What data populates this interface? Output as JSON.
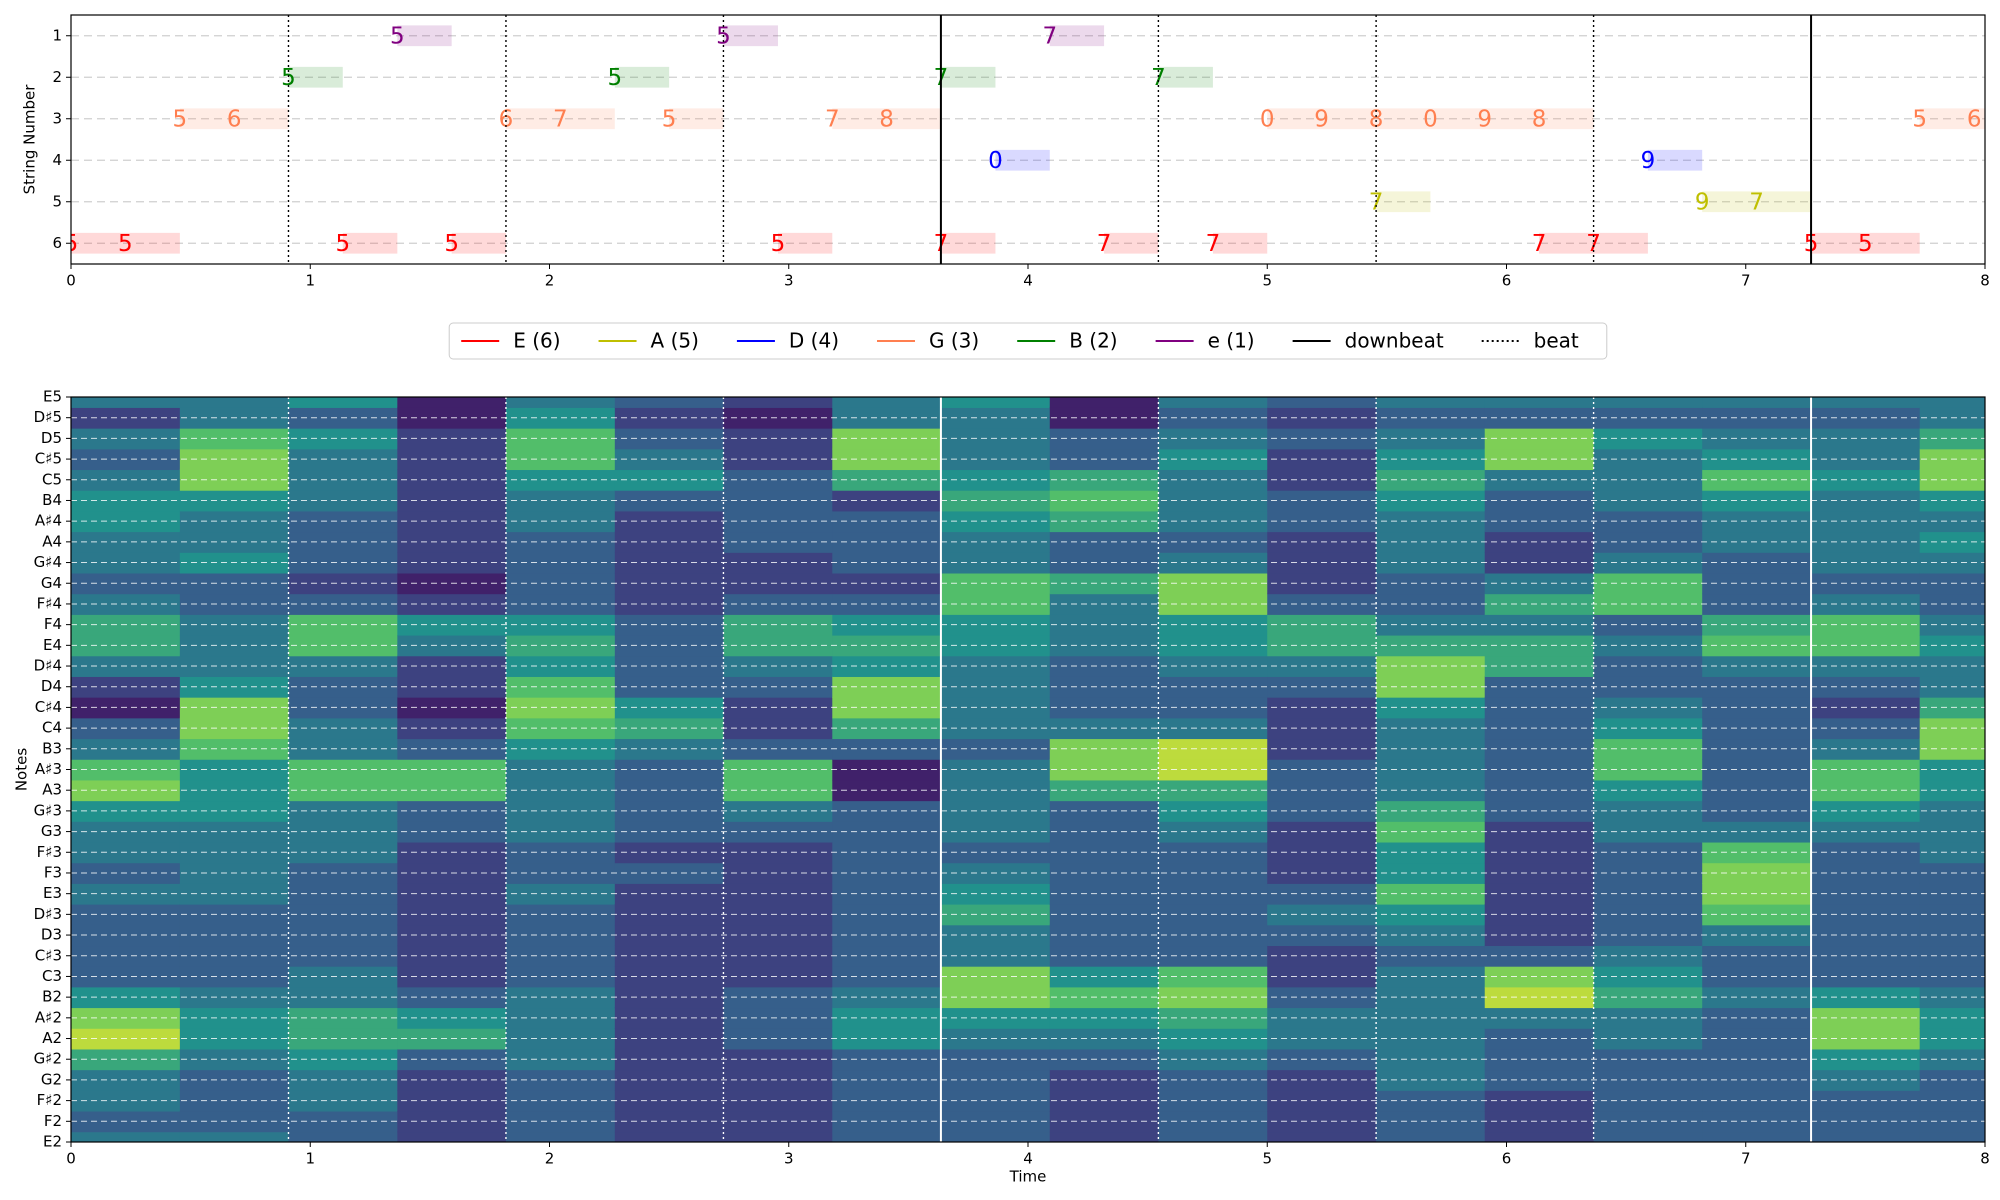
{
  "chart_data": [
    {
      "type": "tab",
      "ylabel": "String Number",
      "xlim": [
        0,
        8
      ],
      "xticks": [
        0,
        1,
        2,
        3,
        4,
        5,
        6,
        7,
        8
      ],
      "ylim": [
        6.5,
        0.5
      ],
      "yticks": [
        1,
        2,
        3,
        4,
        5,
        6
      ],
      "grid": true,
      "series": [
        {
          "name": "E (6)",
          "color": "#ff0000",
          "string": 6,
          "starts": [
            0,
            0.227,
            1.136,
            1.591,
            2.955,
            3.636,
            4.318,
            4.773,
            6.136,
            6.364,
            7.273,
            7.5
          ],
          "ends": [
            0.227,
            0.455,
            1.364,
            1.818,
            3.182,
            3.864,
            4.545,
            5.0,
            6.364,
            6.591,
            7.5,
            7.727
          ],
          "frets": [
            5,
            5,
            5,
            5,
            5,
            7,
            7,
            7,
            7,
            7,
            5,
            5
          ]
        },
        {
          "name": "A (5)",
          "color": "#bfbf00",
          "string": 5,
          "starts": [
            5.455,
            6.818,
            7.045
          ],
          "ends": [
            5.682,
            7.045,
            7.273
          ],
          "frets": [
            7,
            9,
            7
          ]
        },
        {
          "name": "D (4)",
          "color": "#0000ff",
          "string": 4,
          "starts": [
            3.864,
            6.591
          ],
          "ends": [
            4.091,
            6.818
          ],
          "frets": [
            0,
            9
          ]
        },
        {
          "name": "G (3)",
          "color": "#ff7f50",
          "string": 3,
          "starts": [
            0.455,
            0.682,
            1.818,
            2.045,
            2.5,
            3.182,
            3.409,
            5.0,
            5.227,
            5.455,
            5.682,
            5.909,
            6.136,
            7.727,
            7.955
          ],
          "ends": [
            0.682,
            0.909,
            2.045,
            2.273,
            2.727,
            3.409,
            3.636,
            5.227,
            5.455,
            5.682,
            5.909,
            6.136,
            6.364,
            7.955,
            8.182
          ],
          "frets": [
            5,
            6,
            6,
            7,
            5,
            7,
            8,
            0,
            9,
            8,
            0,
            9,
            8,
            5,
            6
          ]
        },
        {
          "name": "B (2)",
          "color": "#008000",
          "string": 2,
          "starts": [
            0.909,
            2.273,
            3.636,
            4.545
          ],
          "ends": [
            1.136,
            2.5,
            3.864,
            4.773
          ],
          "frets": [
            5,
            5,
            7,
            7
          ]
        },
        {
          "name": "e (1)",
          "color": "#800080",
          "string": 1,
          "starts": [
            1.364,
            2.727,
            4.091
          ],
          "ends": [
            1.591,
            2.955,
            4.318
          ],
          "frets": [
            5,
            5,
            7
          ]
        }
      ],
      "downbeats": {
        "name": "downbeat",
        "color": "#000000",
        "values": [
          3.636,
          7.273
        ]
      },
      "beats": {
        "name": "beat",
        "color": "#000000",
        "values": [
          0.909,
          1.818,
          2.727,
          4.545,
          5.455,
          6.364
        ]
      }
    },
    {
      "type": "heatmap",
      "xlabel": "Time",
      "ylabel": "Notes",
      "colormap": "viridis",
      "zlim": [
        0,
        1
      ],
      "grid": true,
      "xlim": [
        0,
        8
      ],
      "xticks": [
        0,
        1,
        2,
        3,
        4,
        5,
        6,
        7,
        8
      ],
      "categories": [
        "E2",
        "F2",
        "F♯2",
        "G2",
        "G♯2",
        "A2",
        "A♯2",
        "B2",
        "C3",
        "C♯3",
        "D3",
        "D♯3",
        "E3",
        "F3",
        "F♯3",
        "G3",
        "G♯3",
        "A3",
        "A♯3",
        "B3",
        "C4",
        "C♯4",
        "D4",
        "D♯4",
        "E4",
        "F4",
        "F♯4",
        "G4",
        "G♯4",
        "A4",
        "A♯4",
        "B4",
        "C5",
        "C♯5",
        "D5",
        "D♯5",
        "E5"
      ],
      "xbins": [
        0,
        0.455,
        0.909,
        1.364,
        1.818,
        2.273,
        2.727,
        3.182,
        3.636,
        4.091,
        4.545,
        5.0,
        5.455,
        5.909,
        6.364,
        6.818,
        7.273,
        7.727,
        8.0
      ],
      "z": [
        [
          0.4,
          0.3,
          0.4,
          0.4,
          0.6,
          0.9,
          0.8,
          0.5,
          0.3,
          0.3,
          0.3,
          0.3,
          0.4,
          0.3,
          0.4,
          0.4,
          0.5,
          0.8,
          0.7,
          0.4,
          0.3,
          0.1,
          0.2,
          0.4,
          0.6,
          0.6,
          0.4,
          0.3,
          0.4,
          0.4,
          0.5,
          0.5,
          0.4,
          0.3,
          0.4,
          0.2,
          0.4
        ],
        [
          0.4,
          0.3,
          0.3,
          0.3,
          0.4,
          0.5,
          0.5,
          0.4,
          0.3,
          0.3,
          0.3,
          0.3,
          0.4,
          0.4,
          0.4,
          0.4,
          0.5,
          0.5,
          0.5,
          0.7,
          0.8,
          0.8,
          0.5,
          0.4,
          0.4,
          0.4,
          0.3,
          0.3,
          0.5,
          0.4,
          0.4,
          0.5,
          0.8,
          0.8,
          0.7,
          0.4,
          0.4
        ],
        [
          0.3,
          0.3,
          0.4,
          0.4,
          0.5,
          0.6,
          0.6,
          0.4,
          0.4,
          0.3,
          0.3,
          0.3,
          0.3,
          0.3,
          0.4,
          0.4,
          0.4,
          0.7,
          0.7,
          0.4,
          0.4,
          0.3,
          0.3,
          0.4,
          0.7,
          0.7,
          0.3,
          0.2,
          0.3,
          0.3,
          0.3,
          0.4,
          0.4,
          0.4,
          0.5,
          0.3,
          0.5
        ],
        [
          0.2,
          0.2,
          0.2,
          0.2,
          0.3,
          0.6,
          0.5,
          0.3,
          0.2,
          0.2,
          0.2,
          0.2,
          0.2,
          0.2,
          0.2,
          0.3,
          0.3,
          0.7,
          0.7,
          0.3,
          0.2,
          0.1,
          0.2,
          0.2,
          0.4,
          0.5,
          0.2,
          0.1,
          0.2,
          0.2,
          0.2,
          0.2,
          0.2,
          0.2,
          0.2,
          0.1,
          0.1
        ],
        [
          0.3,
          0.3,
          0.3,
          0.3,
          0.4,
          0.4,
          0.4,
          0.4,
          0.3,
          0.3,
          0.3,
          0.3,
          0.4,
          0.3,
          0.3,
          0.4,
          0.4,
          0.4,
          0.4,
          0.5,
          0.7,
          0.8,
          0.7,
          0.5,
          0.6,
          0.5,
          0.3,
          0.3,
          0.3,
          0.3,
          0.4,
          0.4,
          0.5,
          0.7,
          0.7,
          0.5,
          0.4
        ],
        [
          0.2,
          0.2,
          0.2,
          0.2,
          0.2,
          0.2,
          0.2,
          0.2,
          0.2,
          0.2,
          0.2,
          0.2,
          0.2,
          0.3,
          0.2,
          0.3,
          0.3,
          0.3,
          0.3,
          0.4,
          0.6,
          0.5,
          0.3,
          0.3,
          0.3,
          0.3,
          0.2,
          0.2,
          0.2,
          0.2,
          0.2,
          0.3,
          0.5,
          0.4,
          0.3,
          0.2,
          0.3
        ],
        [
          0.2,
          0.2,
          0.2,
          0.2,
          0.2,
          0.3,
          0.3,
          0.3,
          0.2,
          0.2,
          0.2,
          0.2,
          0.2,
          0.2,
          0.2,
          0.3,
          0.4,
          0.7,
          0.7,
          0.3,
          0.2,
          0.2,
          0.3,
          0.4,
          0.6,
          0.6,
          0.3,
          0.2,
          0.2,
          0.3,
          0.3,
          0.3,
          0.3,
          0.2,
          0.2,
          0.1,
          0.2
        ],
        [
          0.3,
          0.3,
          0.3,
          0.3,
          0.3,
          0.5,
          0.5,
          0.4,
          0.3,
          0.3,
          0.3,
          0.3,
          0.3,
          0.3,
          0.3,
          0.3,
          0.3,
          0.1,
          0.1,
          0.3,
          0.6,
          0.8,
          0.8,
          0.5,
          0.6,
          0.5,
          0.3,
          0.2,
          0.3,
          0.3,
          0.3,
          0.2,
          0.6,
          0.8,
          0.8,
          0.4,
          0.4
        ],
        [
          0.3,
          0.3,
          0.3,
          0.3,
          0.3,
          0.4,
          0.5,
          0.8,
          0.8,
          0.4,
          0.4,
          0.6,
          0.5,
          0.4,
          0.3,
          0.4,
          0.4,
          0.4,
          0.4,
          0.3,
          0.4,
          0.4,
          0.4,
          0.4,
          0.5,
          0.5,
          0.7,
          0.7,
          0.4,
          0.4,
          0.5,
          0.6,
          0.5,
          0.4,
          0.4,
          0.4,
          0.5
        ],
        [
          0.2,
          0.2,
          0.2,
          0.2,
          0.3,
          0.4,
          0.5,
          0.7,
          0.5,
          0.3,
          0.3,
          0.3,
          0.3,
          0.3,
          0.3,
          0.3,
          0.3,
          0.6,
          0.8,
          0.8,
          0.4,
          0.3,
          0.3,
          0.3,
          0.4,
          0.4,
          0.4,
          0.6,
          0.3,
          0.3,
          0.6,
          0.7,
          0.6,
          0.3,
          0.3,
          0.1,
          0.1
        ],
        [
          0.3,
          0.3,
          0.3,
          0.3,
          0.4,
          0.5,
          0.6,
          0.8,
          0.7,
          0.3,
          0.3,
          0.3,
          0.3,
          0.3,
          0.3,
          0.4,
          0.5,
          0.6,
          0.9,
          0.9,
          0.4,
          0.3,
          0.3,
          0.4,
          0.5,
          0.5,
          0.8,
          0.8,
          0.4,
          0.3,
          0.4,
          0.4,
          0.4,
          0.5,
          0.4,
          0.3,
          0.4
        ],
        [
          0.2,
          0.2,
          0.2,
          0.2,
          0.3,
          0.4,
          0.4,
          0.3,
          0.2,
          0.2,
          0.3,
          0.4,
          0.3,
          0.2,
          0.2,
          0.2,
          0.3,
          0.3,
          0.3,
          0.2,
          0.2,
          0.2,
          0.3,
          0.4,
          0.6,
          0.6,
          0.3,
          0.2,
          0.2,
          0.2,
          0.3,
          0.3,
          0.2,
          0.2,
          0.3,
          0.2,
          0.3
        ],
        [
          0.3,
          0.3,
          0.3,
          0.4,
          0.4,
          0.4,
          0.4,
          0.4,
          0.4,
          0.3,
          0.4,
          0.5,
          0.7,
          0.5,
          0.5,
          0.7,
          0.6,
          0.4,
          0.4,
          0.4,
          0.4,
          0.5,
          0.8,
          0.8,
          0.6,
          0.4,
          0.3,
          0.3,
          0.4,
          0.4,
          0.4,
          0.5,
          0.6,
          0.5,
          0.4,
          0.3,
          0.4
        ],
        [
          0.2,
          0.2,
          0.2,
          0.3,
          0.3,
          0.3,
          0.4,
          0.9,
          0.8,
          0.3,
          0.2,
          0.2,
          0.2,
          0.2,
          0.2,
          0.2,
          0.3,
          0.3,
          0.3,
          0.3,
          0.3,
          0.3,
          0.3,
          0.6,
          0.6,
          0.4,
          0.6,
          0.4,
          0.2,
          0.2,
          0.3,
          0.3,
          0.4,
          0.8,
          0.8,
          0.3,
          0.4
        ],
        [
          0.3,
          0.3,
          0.3,
          0.3,
          0.3,
          0.4,
          0.4,
          0.6,
          0.5,
          0.4,
          0.3,
          0.3,
          0.3,
          0.3,
          0.3,
          0.4,
          0.4,
          0.5,
          0.7,
          0.7,
          0.5,
          0.4,
          0.3,
          0.3,
          0.4,
          0.3,
          0.7,
          0.7,
          0.4,
          0.3,
          0.3,
          0.4,
          0.4,
          0.4,
          0.5,
          0.3,
          0.4
        ],
        [
          0.3,
          0.3,
          0.3,
          0.3,
          0.3,
          0.3,
          0.3,
          0.4,
          0.3,
          0.3,
          0.4,
          0.7,
          0.8,
          0.8,
          0.7,
          0.4,
          0.3,
          0.3,
          0.3,
          0.3,
          0.3,
          0.3,
          0.3,
          0.4,
          0.7,
          0.6,
          0.3,
          0.3,
          0.3,
          0.4,
          0.4,
          0.5,
          0.7,
          0.5,
          0.4,
          0.3,
          0.4
        ],
        [
          0.3,
          0.3,
          0.3,
          0.4,
          0.5,
          0.8,
          0.8,
          0.5,
          0.3,
          0.3,
          0.3,
          0.3,
          0.3,
          0.3,
          0.3,
          0.4,
          0.5,
          0.7,
          0.7,
          0.4,
          0.3,
          0.2,
          0.3,
          0.4,
          0.7,
          0.7,
          0.4,
          0.3,
          0.4,
          0.4,
          0.4,
          0.4,
          0.5,
          0.4,
          0.4,
          0.3,
          0.4
        ],
        [
          0.3,
          0.3,
          0.3,
          0.3,
          0.4,
          0.5,
          0.5,
          0.4,
          0.3,
          0.3,
          0.3,
          0.3,
          0.3,
          0.3,
          0.4,
          0.4,
          0.4,
          0.5,
          0.5,
          0.8,
          0.8,
          0.6,
          0.4,
          0.4,
          0.5,
          0.4,
          0.3,
          0.3,
          0.4,
          0.5,
          0.4,
          0.5,
          0.8,
          0.8,
          0.6,
          0.4,
          0.4
        ]
      ]
    }
  ]
}
